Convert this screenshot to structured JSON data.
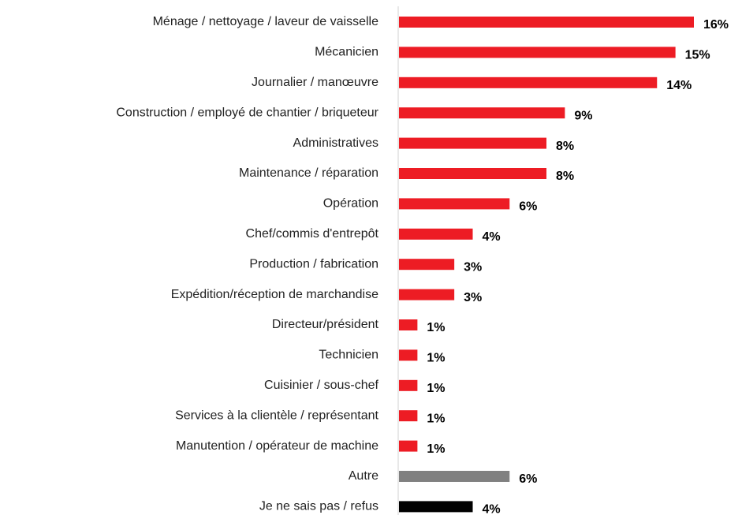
{
  "chart_data": {
    "type": "hbar",
    "categories": [
      "Ménage / nettoyage / laveur de vaisselle",
      "Mécanicien",
      "Journalier / manœuvre",
      "Construction / employé de chantier / briqueteur",
      "Administratives",
      "Maintenance / réparation",
      "Opération",
      "Chef/commis d'entrepôt",
      "Production / fabrication",
      "Expédition/réception de marchandise",
      "Directeur/président",
      "Technicien",
      "Cuisinier / sous-chef",
      "Services à la clientèle / représentant",
      "Manutention / opérateur de machine",
      "Autre",
      "Je ne sais pas / refus"
    ],
    "values": [
      16,
      15,
      14,
      9,
      8,
      8,
      6,
      4,
      3,
      3,
      1,
      1,
      1,
      1,
      1,
      6,
      4
    ],
    "value_labels": [
      "16%",
      "15%",
      "14%",
      "9%",
      "8%",
      "8%",
      "6%",
      "4%",
      "3%",
      "3%",
      "1%",
      "1%",
      "1%",
      "1%",
      "1%",
      "6%",
      "4%"
    ],
    "colors": [
      "#ed1c24",
      "#ed1c24",
      "#ed1c24",
      "#ed1c24",
      "#ed1c24",
      "#ed1c24",
      "#ed1c24",
      "#ed1c24",
      "#ed1c24",
      "#ed1c24",
      "#ed1c24",
      "#ed1c24",
      "#ed1c24",
      "#ed1c24",
      "#ed1c24",
      "#808080",
      "#000000"
    ]
  }
}
